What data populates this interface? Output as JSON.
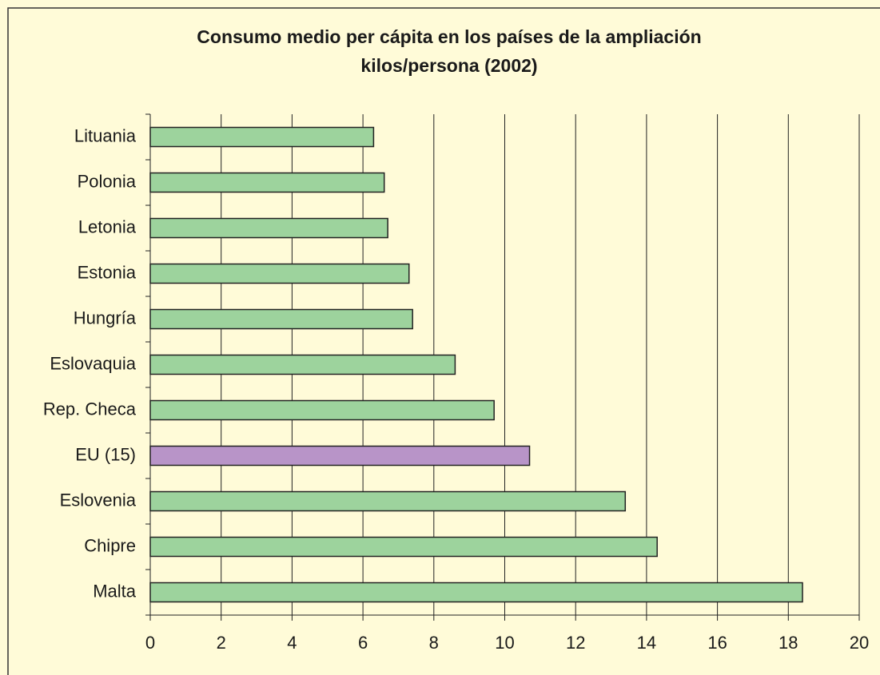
{
  "chart_data": {
    "type": "barh",
    "title": "Consumo medio per cápita en los países de la ampliación",
    "subtitle": "kilos/persona (2002)",
    "categories": [
      "Lituania",
      "Polonia",
      "Letonia",
      "Estonia",
      "Hungría",
      "Eslovaquia",
      "Rep. Checa",
      "EU (15)",
      "Eslovenia",
      "Chipre",
      "Malta"
    ],
    "values": [
      6.3,
      6.6,
      6.7,
      7.3,
      7.4,
      8.6,
      9.7,
      10.7,
      13.4,
      14.3,
      18.4
    ],
    "colors": [
      "#9dd39d",
      "#9dd39d",
      "#9dd39d",
      "#9dd39d",
      "#9dd39d",
      "#9dd39d",
      "#9dd39d",
      "#b894c8",
      "#9dd39d",
      "#9dd39d",
      "#9dd39d"
    ],
    "xlim": [
      0,
      20
    ],
    "xticks": [
      0,
      2,
      4,
      6,
      8,
      10,
      12,
      14,
      16,
      18,
      20
    ],
    "grid": true
  }
}
